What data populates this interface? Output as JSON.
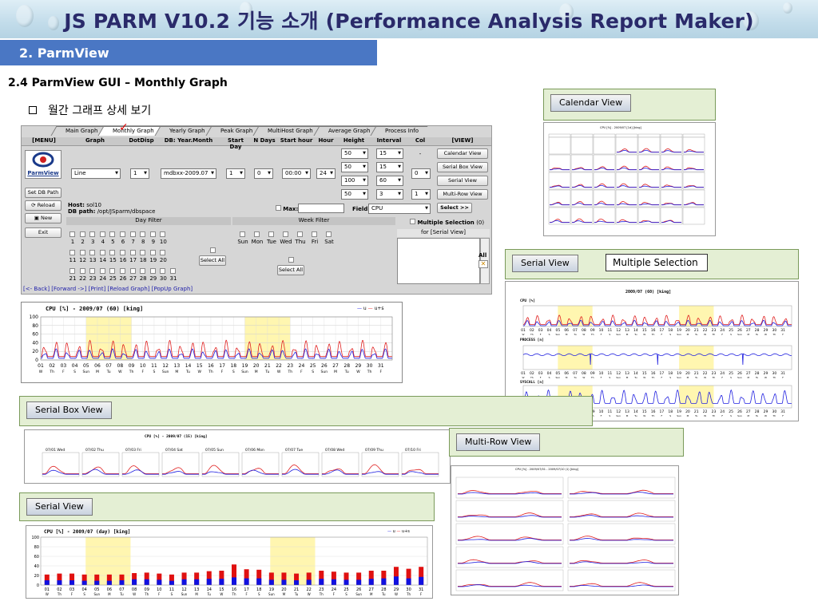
{
  "title": "JS PARM V10.2 기능 소개 (Performance Analysis Report Maker)",
  "section": "2.  ParmView",
  "subsection": "2.4  ParmView  GUI – Monthly Graph",
  "bullet": "월간 그래프 상세 보기",
  "tabs": [
    "Main Graph",
    "Monthly Graph",
    "Yearly Graph",
    "Peak Graph",
    "MultiHost Graph",
    "Average Graph",
    "Process Info"
  ],
  "header_cols": [
    "[MENU]",
    "Graph",
    "DotDisp",
    "DB: Year.Month",
    "Start Day",
    "N Days",
    "Start hour",
    "Hour",
    "Height",
    "Interval",
    "Col",
    "[VIEW]"
  ],
  "menu": {
    "logo": "ParmView",
    "setdb": "Set DB Path",
    "reload": "Reload",
    "new": "New",
    "exit": "Exit"
  },
  "controls": {
    "graph": "Line",
    "dotdisp": "1",
    "db": "mdbxx-2009.07",
    "startday": "1",
    "ndays": "0",
    "starthour": "00:00",
    "hour": "24",
    "heights": [
      "50",
      "50",
      "100",
      "50"
    ],
    "intervals": [
      "15",
      "15",
      "60",
      "3"
    ],
    "col_dash": "-",
    "col1": "0",
    "col2": "1"
  },
  "view_buttons": [
    "Calendar View",
    "Serial Box View",
    "Serial View",
    "Multi-Row View"
  ],
  "host": {
    "host_label": "Host:",
    "host": "sol10",
    "dbpath_label": "DB path:",
    "dbpath": "/opt/JSparm/dbspace",
    "max": "Max:",
    "field": "Field:",
    "field_value": "CPU",
    "select": "Select >>"
  },
  "dayfilter": "Day Filter",
  "weekfilter": "Week Filter",
  "multisel": "Multiple Selection",
  "multisel_count": "(0)",
  "for_serial": "for [Serial View]",
  "days_r1": [
    "1",
    "2",
    "3",
    "4",
    "5",
    "6",
    "7",
    "8",
    "9",
    "10"
  ],
  "days_r2": [
    "11",
    "12",
    "13",
    "14",
    "15",
    "16",
    "17",
    "18",
    "19",
    "20"
  ],
  "days_r3": [
    "21",
    "22",
    "23",
    "24",
    "25",
    "26",
    "27",
    "28",
    "29",
    "30",
    "31"
  ],
  "weekdays": [
    "Sun",
    "Mon",
    "Tue",
    "Wed",
    "Thu",
    "Fri",
    "Sat"
  ],
  "selectall": "Select All",
  "all": "All",
  "links": "[<- Back] [Forward ->] [Print] [Reload Graph] [PopUp Graph]",
  "main_graph": {
    "title": "CPU [%] - 2009/07 (60) [king]",
    "legend_u": "u",
    "legend_us": "u+s",
    "yticks": [
      "100",
      "80",
      "60",
      "40",
      "20",
      "0"
    ],
    "xdays": [
      "01",
      "02",
      "03",
      "04",
      "05",
      "06",
      "07",
      "08",
      "09",
      "10",
      "11",
      "12",
      "13",
      "14",
      "15",
      "16",
      "17",
      "18",
      "19",
      "20",
      "21",
      "22",
      "23",
      "24",
      "25",
      "26",
      "27",
      "28",
      "29",
      "30",
      "31"
    ],
    "xwd": [
      "W",
      "Th",
      "F",
      "S",
      "Sun",
      "M",
      "Tu",
      "W",
      "Th",
      "F",
      "S",
      "Sun",
      "M",
      "Tu",
      "W",
      "Th",
      "F",
      "S",
      "Sun",
      "M",
      "Tu",
      "W",
      "Th",
      "F",
      "S",
      "Sun",
      "M",
      "Tu",
      "W",
      "Th",
      "F"
    ]
  },
  "callouts": {
    "calendar": "Calendar View",
    "serial_right": "Serial View",
    "multiple": "Multiple  Selection",
    "serialbox": "Serial Box View",
    "serial_bottom": "Serial View",
    "multirow": "Multi-Row View"
  },
  "serial_right": {
    "title": "2009/07 (60) [king]",
    "p1": "CPU [%]",
    "p2": "PROCESS [n]",
    "p3": "SYSCALL [n]"
  },
  "serialbox": {
    "title": "CPU [%] - 2009/07 (15) [king]",
    "days": [
      "07/01 Wed",
      "07/02 Thu",
      "07/03 Fri",
      "07/04 Sat",
      "07/05 Sun",
      "07/06 Mon",
      "07/07 Tue",
      "07/08 Wed",
      "07/09 Thu",
      "07/10 Fri"
    ]
  },
  "serial_bottom": {
    "title": "CPU [%] - 2009/07 (day) [king]",
    "yticks": [
      "100",
      "80",
      "60",
      "40",
      "20",
      "0"
    ]
  },
  "multirow": {
    "title": "CPU [%] - 2009/07/01 - 2009/07/10 (1) [king]"
  },
  "calendar": {
    "title": "CPU [%] - 2009/07 [1d] [king]"
  },
  "colors": {
    "red": "#e02020",
    "blue": "#2020e0",
    "shade": "#fff6b0"
  }
}
